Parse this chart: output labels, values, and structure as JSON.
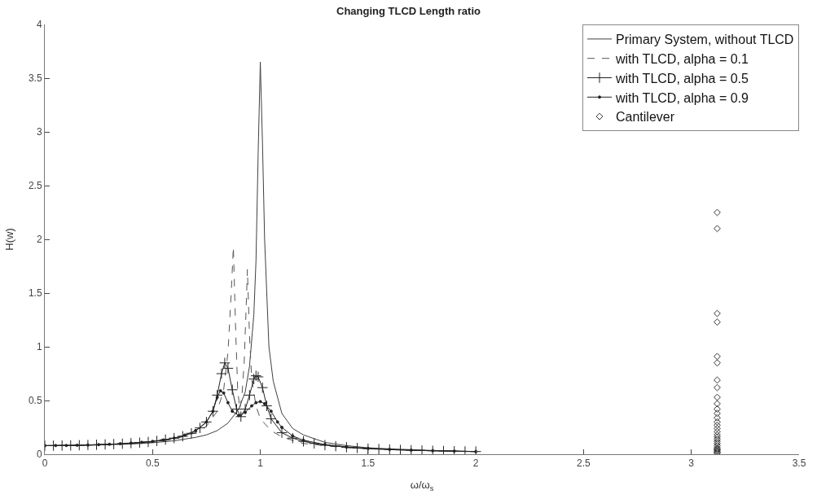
{
  "chart_data": {
    "type": "line",
    "title": "Changing TLCD Length ratio",
    "xlabel": "ω/ω$_{s}$",
    "ylabel": "H(w)",
    "xlim": [
      0,
      3.5
    ],
    "xticks": [
      0,
      0.5,
      1,
      1.5,
      2,
      2.5,
      3,
      3.5
    ],
    "ylim": [
      0,
      4
    ],
    "yticks": [
      0,
      0.5,
      1,
      1.5,
      2,
      2.5,
      3,
      3.5,
      4
    ],
    "legend": "top right",
    "series": [
      {
        "name": "Primary System, without TLCD",
        "color": "#404040",
        "line_style": "solid",
        "marker": "none",
        "x": [
          0,
          0.2,
          0.4,
          0.5,
          0.6,
          0.7,
          0.75,
          0.8,
          0.85,
          0.9,
          0.93,
          0.95,
          0.97,
          0.98,
          0.99,
          1.0,
          1.01,
          1.02,
          1.04,
          1.06,
          1.1,
          1.15,
          1.2,
          1.3,
          1.4,
          1.5,
          1.6,
          1.8,
          2.0
        ],
        "values": [
          0.08,
          0.083,
          0.095,
          0.107,
          0.125,
          0.157,
          0.18,
          0.22,
          0.29,
          0.42,
          0.58,
          0.82,
          1.3,
          1.8,
          2.8,
          3.65,
          2.9,
          2.0,
          1.0,
          0.68,
          0.38,
          0.24,
          0.18,
          0.11,
          0.08,
          0.06,
          0.05,
          0.035,
          0.025
        ]
      },
      {
        "name": "with TLCD, alpha = 0.1",
        "color": "#555555",
        "line_style": "dashed",
        "marker": "none",
        "x": [
          0,
          0.3,
          0.5,
          0.6,
          0.7,
          0.75,
          0.8,
          0.83,
          0.85,
          0.865,
          0.875,
          0.885,
          0.895,
          0.905,
          0.915,
          0.925,
          0.935,
          0.94,
          0.95,
          0.96,
          0.98,
          1.0,
          1.05,
          1.1,
          1.2,
          1.4,
          1.6,
          1.8,
          2.0
        ],
        "values": [
          0.08,
          0.09,
          0.11,
          0.14,
          0.2,
          0.26,
          0.4,
          0.6,
          0.95,
          1.5,
          1.93,
          1.2,
          0.6,
          0.42,
          0.55,
          0.85,
          1.4,
          1.72,
          1.1,
          0.7,
          0.45,
          0.33,
          0.22,
          0.16,
          0.1,
          0.06,
          0.045,
          0.035,
          0.025
        ]
      },
      {
        "name": "with TLCD, alpha = 0.5",
        "color": "#222222",
        "line_style": "solid",
        "marker": "cross",
        "x": [
          0,
          0.04,
          0.08,
          0.12,
          0.16,
          0.2,
          0.24,
          0.28,
          0.32,
          0.36,
          0.4,
          0.44,
          0.48,
          0.52,
          0.56,
          0.6,
          0.64,
          0.68,
          0.72,
          0.75,
          0.78,
          0.8,
          0.82,
          0.835,
          0.85,
          0.87,
          0.89,
          0.91,
          0.93,
          0.95,
          0.97,
          0.98,
          0.99,
          1.01,
          1.03,
          1.05,
          1.1,
          1.15,
          1.2,
          1.25,
          1.3,
          1.35,
          1.4,
          1.45,
          1.5,
          1.55,
          1.6,
          1.65,
          1.7,
          1.75,
          1.8,
          1.85,
          1.9,
          1.95,
          2.0
        ],
        "values": [
          0.08,
          0.08,
          0.081,
          0.082,
          0.084,
          0.086,
          0.088,
          0.091,
          0.094,
          0.098,
          0.103,
          0.108,
          0.114,
          0.124,
          0.136,
          0.15,
          0.167,
          0.195,
          0.245,
          0.3,
          0.4,
          0.55,
          0.75,
          0.85,
          0.8,
          0.6,
          0.42,
          0.35,
          0.42,
          0.55,
          0.7,
          0.73,
          0.72,
          0.62,
          0.45,
          0.33,
          0.2,
          0.15,
          0.12,
          0.1,
          0.085,
          0.075,
          0.065,
          0.058,
          0.052,
          0.048,
          0.044,
          0.04,
          0.037,
          0.034,
          0.032,
          0.03,
          0.028,
          0.026,
          0.025
        ]
      },
      {
        "name": "with TLCD, alpha = 0.9",
        "color": "#222222",
        "line_style": "solid",
        "marker": "circle",
        "x": [
          0,
          0.05,
          0.1,
          0.15,
          0.2,
          0.25,
          0.3,
          0.35,
          0.4,
          0.45,
          0.5,
          0.55,
          0.6,
          0.65,
          0.7,
          0.75,
          0.78,
          0.8,
          0.815,
          0.83,
          0.85,
          0.87,
          0.9,
          0.93,
          0.96,
          0.98,
          1.0,
          1.02,
          1.05,
          1.08,
          1.1,
          1.15,
          1.2,
          1.3,
          1.4,
          1.5,
          1.6,
          1.7,
          1.8,
          1.9,
          2.0
        ],
        "values": [
          0.08,
          0.081,
          0.082,
          0.084,
          0.086,
          0.089,
          0.093,
          0.098,
          0.104,
          0.111,
          0.12,
          0.133,
          0.15,
          0.178,
          0.22,
          0.3,
          0.4,
          0.53,
          0.59,
          0.57,
          0.48,
          0.4,
          0.36,
          0.39,
          0.45,
          0.48,
          0.49,
          0.47,
          0.4,
          0.3,
          0.25,
          0.17,
          0.13,
          0.09,
          0.068,
          0.054,
          0.045,
          0.038,
          0.033,
          0.029,
          0.025
        ]
      },
      {
        "name": "Cantilever",
        "type": "scatter",
        "color": "#333333",
        "marker": "diamond",
        "x": [
          3.12,
          3.12,
          3.12,
          3.12,
          3.12,
          3.12,
          3.12,
          3.12,
          3.12,
          3.12,
          3.12,
          3.12,
          3.12,
          3.12,
          3.12,
          3.12,
          3.12,
          3.12,
          3.12,
          3.12,
          3.12,
          3.12,
          3.12,
          3.12,
          3.12,
          3.12,
          3.12,
          3.12,
          3.12
        ],
        "values": [
          2.25,
          2.1,
          1.31,
          1.23,
          0.91,
          0.85,
          0.69,
          0.62,
          0.53,
          0.47,
          0.42,
          0.38,
          0.34,
          0.3,
          0.27,
          0.24,
          0.21,
          0.18,
          0.16,
          0.14,
          0.12,
          0.1,
          0.08,
          0.06,
          0.05,
          0.04,
          0.03,
          0.02,
          0.01
        ]
      }
    ]
  }
}
